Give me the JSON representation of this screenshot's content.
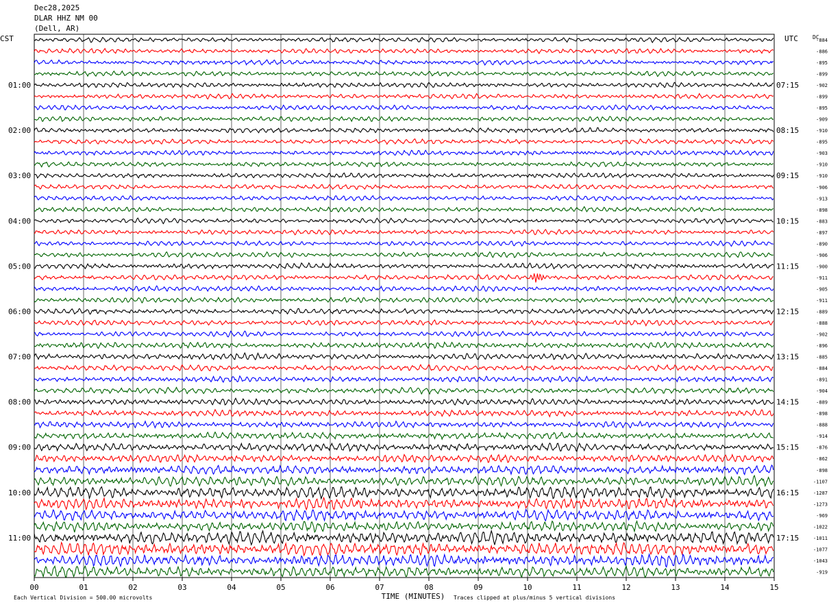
{
  "header": {
    "date": "Dec28,2025",
    "station": "DLAR HHZ NM 00",
    "location": "(Dell, AR)"
  },
  "chart_data": {
    "type": "line",
    "left_timezone": "CST",
    "right_timezone": "UTC",
    "dc_header": "DC",
    "trace_colors": [
      "#000000",
      "#ff0000",
      "#0000ff",
      "#006400"
    ],
    "traces_per_hour": 4,
    "minutes_per_trace": 15,
    "x_ticks": [
      "00",
      "01",
      "02",
      "03",
      "04",
      "05",
      "06",
      "07",
      "08",
      "09",
      "10",
      "11",
      "12",
      "13",
      "14",
      "15"
    ],
    "xlabel": "TIME (MINUTES)",
    "left_hour_labels": [
      "01:00",
      "02:00",
      "03:00",
      "04:00",
      "05:00",
      "06:00",
      "07:00",
      "08:00",
      "09:00",
      "10:00",
      "11:00"
    ],
    "right_hour_labels": [
      "07:15",
      "08:15",
      "09:15",
      "10:15",
      "11:15",
      "12:15",
      "13:15",
      "14:15",
      "15:15",
      "16:15",
      "17:15"
    ],
    "dc_offsets": [
      "-884",
      "-886",
      "-895",
      "-899",
      "-902",
      "-899",
      "-895",
      "-909",
      "-910",
      "-895",
      "-903",
      "-910",
      "-910",
      "-906",
      "-913",
      "-898",
      "-883",
      "-897",
      "-890",
      "-906",
      "-900",
      "-911",
      "-905",
      "-911",
      "-889",
      "-888",
      "-902",
      "-896",
      "-885",
      "-884",
      "-891",
      "-904",
      "-889",
      "-898",
      "-888",
      "-914",
      "-876",
      "-862",
      "-898",
      "-1107",
      "-1287",
      "-1273",
      "-969",
      "-1022",
      "-1011",
      "-1077",
      "-1043",
      "-919"
    ],
    "amplitude_levels": [
      1,
      1,
      1,
      1,
      1,
      1,
      1,
      1,
      1,
      1,
      1,
      1,
      1,
      1,
      1,
      1,
      1,
      1,
      1,
      1.1,
      1.1,
      1.1,
      1.1,
      1.1,
      1.1,
      1.1,
      1.1,
      1.2,
      1.3,
      1.2,
      1.2,
      1.2,
      1.3,
      1.3,
      1.3,
      1.4,
      1.6,
      1.6,
      1.8,
      2.0,
      2.4,
      2.3,
      2.2,
      2.1,
      2.6,
      2.6,
      2.4,
      2.2
    ],
    "event": {
      "trace_index": 21,
      "minute": 10.2,
      "label": ""
    }
  },
  "footer": {
    "scale_note": "Each Vertical Division =  500.00 microvolts",
    "clip_note": "Traces clipped at plus/minus 5 vertical divisions"
  }
}
